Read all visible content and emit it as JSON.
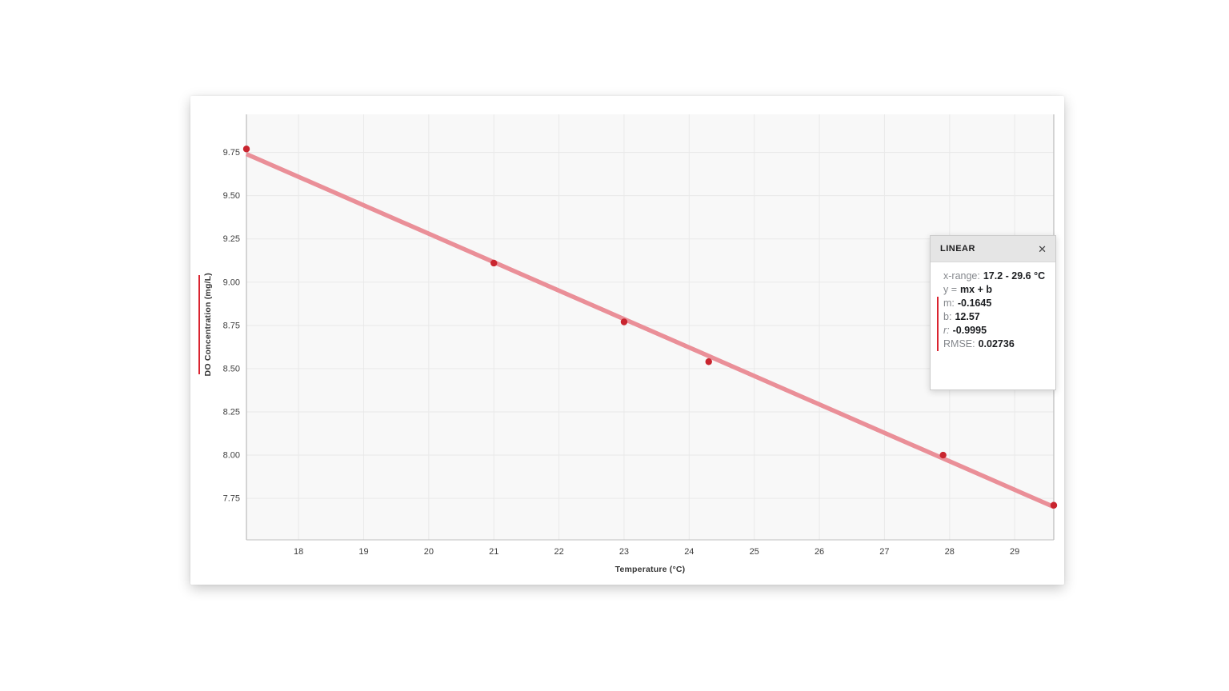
{
  "chart_data": {
    "type": "scatter",
    "title": "",
    "xlabel": "Temperature (°C)",
    "ylabel": "DO Concentration (mg/L)",
    "x_ticks": [
      18,
      19,
      20,
      21,
      22,
      23,
      24,
      25,
      26,
      27,
      28,
      29
    ],
    "y_ticks": [
      "9.75",
      "9.50",
      "9.25",
      "9.00",
      "8.75",
      "8.50",
      "8.25",
      "8.00",
      "7.75"
    ],
    "xlim": [
      17.2,
      29.6
    ],
    "ylim": [
      7.51,
      9.97
    ],
    "grid": true,
    "legend_position": "none",
    "points": [
      [
        17.2,
        9.77
      ],
      [
        21.0,
        9.11
      ],
      [
        23.0,
        8.77
      ],
      [
        24.3,
        8.54
      ],
      [
        27.9,
        8.0
      ],
      [
        29.6,
        7.71
      ]
    ],
    "fit_line": {
      "type": "linear",
      "m": -0.1645,
      "b": 12.57,
      "x_start": 17.2,
      "x_end": 29.6
    },
    "colors": {
      "point": "#c9252f",
      "fit_line": "#ea8f98",
      "accent_red": "#da2430",
      "grid": "#e9e9e9",
      "plot_bg": "#f8f8f8",
      "axis_border": "#bfbfbf",
      "tick_text": "#3e3e3e"
    }
  },
  "fit_panel": {
    "title": "LINEAR",
    "close_icon": "✕",
    "rows": [
      {
        "label": "x-range:",
        "value": "17.2 - 29.6 °C"
      },
      {
        "label": "y =",
        "value": "mx + b"
      },
      {
        "label": "m:",
        "value": "-0.1645"
      },
      {
        "label": "b:",
        "value": "12.57"
      },
      {
        "label": "r:",
        "value": "-0.9995"
      },
      {
        "label": "RMSE:",
        "value": "0.02736"
      }
    ]
  }
}
